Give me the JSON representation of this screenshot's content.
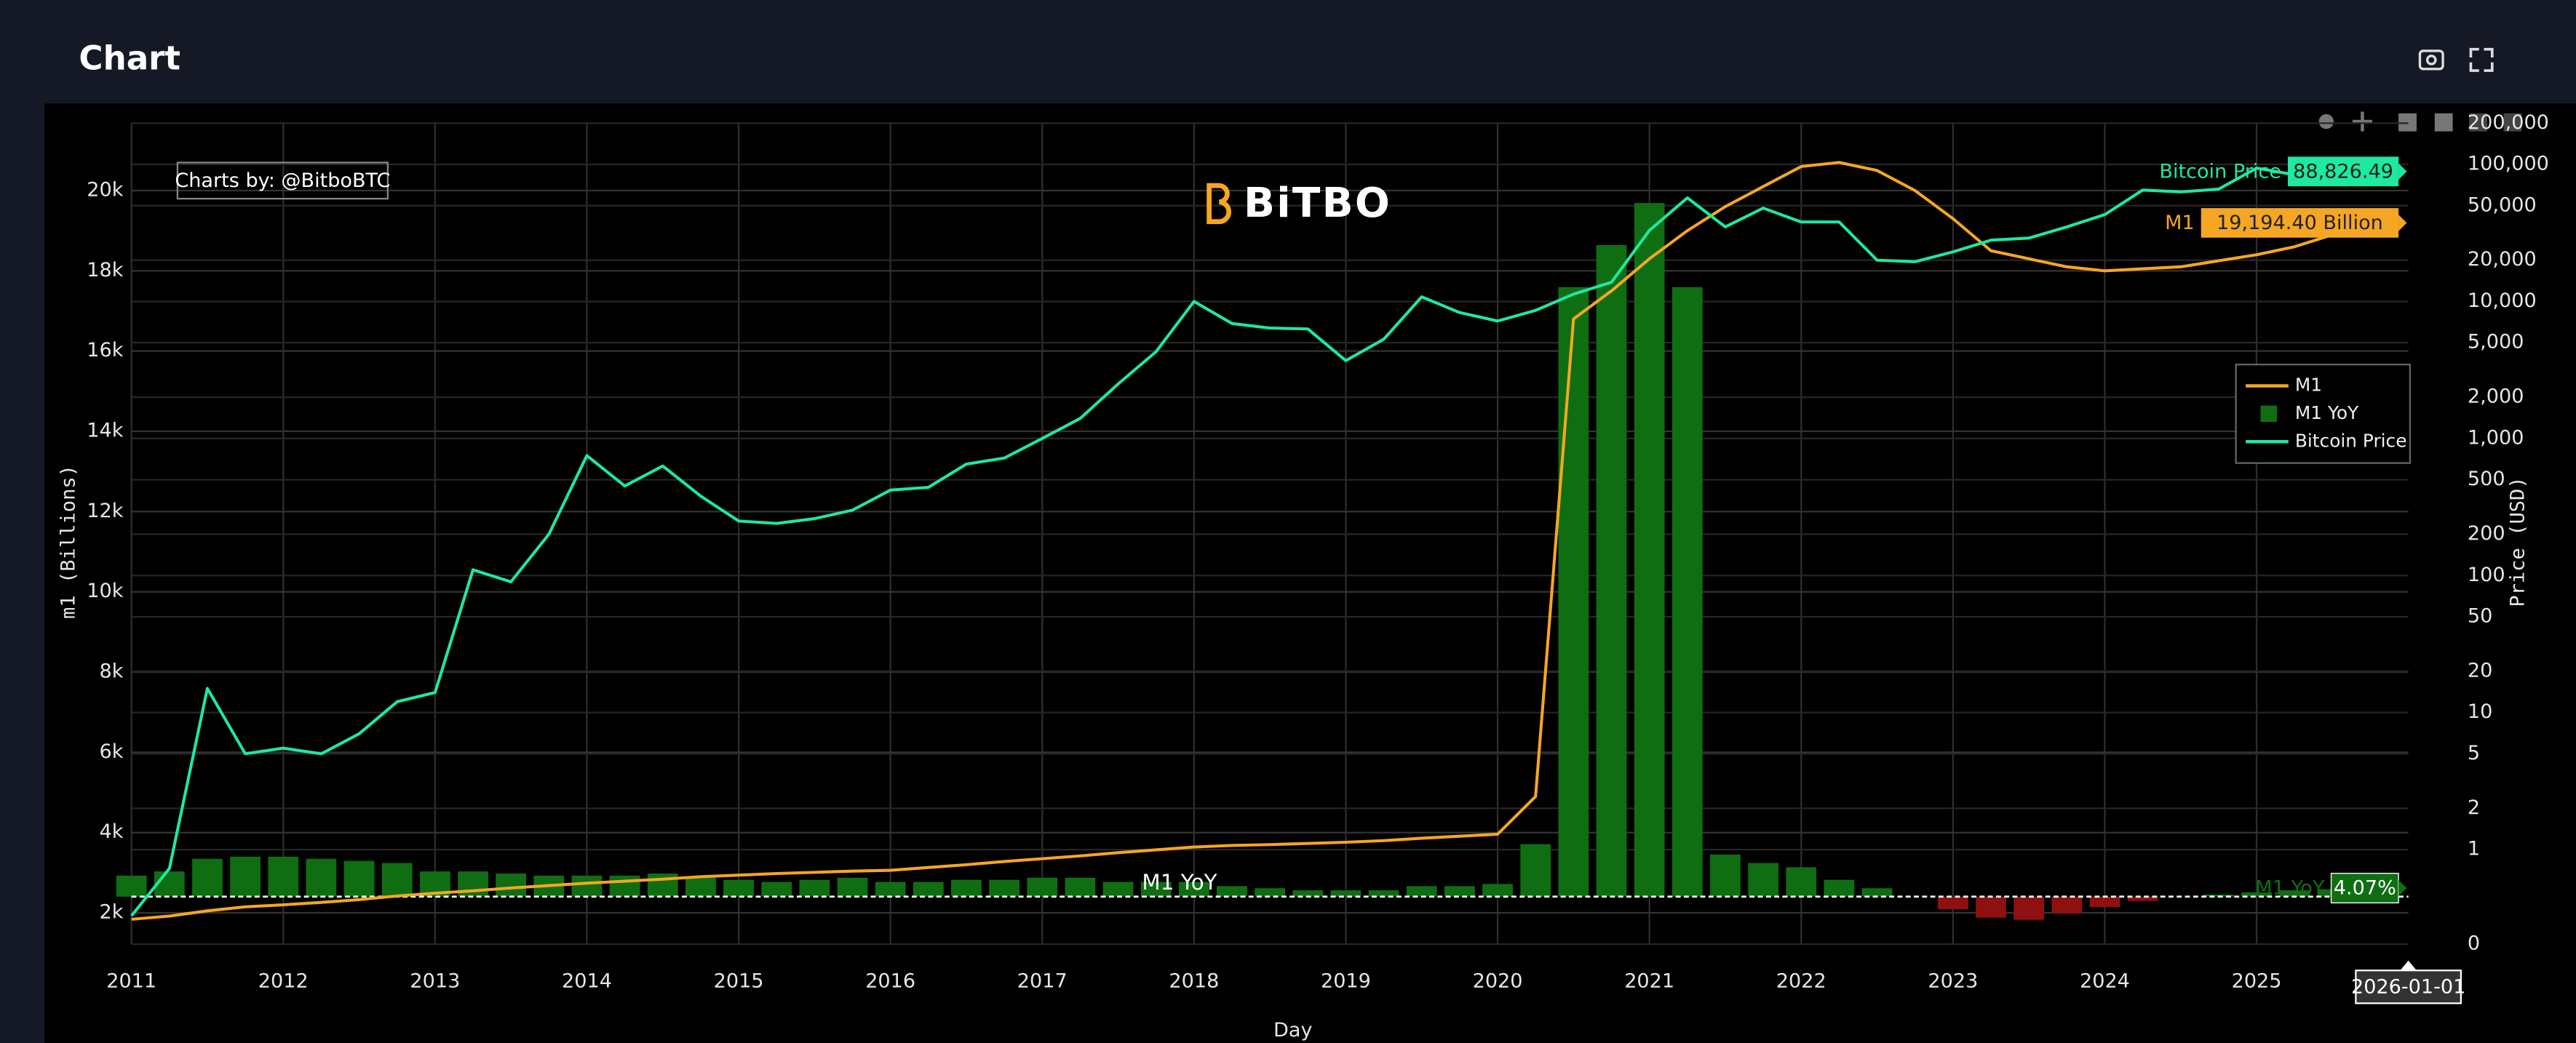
{
  "header": {
    "title": "Chart"
  },
  "chart_data": {
    "type": "line",
    "watermark": "Charts by: @BitboBTC",
    "logo_text": "BiTBO",
    "baseline_label": "M1 YoY",
    "cursor_label": "2026-01-01",
    "xlabel": "Day",
    "ylabel": "m1 (Billions)",
    "y2label": "Price (USD)",
    "grid": true,
    "legend": "right",
    "xlim": [
      2011,
      2026
    ],
    "xticks": [
      2011,
      2012,
      2013,
      2014,
      2015,
      2016,
      2017,
      2018,
      2019,
      2020,
      2021,
      2022,
      2023,
      2024,
      2025
    ],
    "ylim": [
      1220,
      21680
    ],
    "yticks": [
      {
        "value": 2000,
        "label": "2k"
      },
      {
        "value": 4000,
        "label": "4k"
      },
      {
        "value": 6000,
        "label": "6k"
      },
      {
        "value": 8000,
        "label": "8k"
      },
      {
        "value": 10000,
        "label": "10k"
      },
      {
        "value": 12000,
        "label": "12k"
      },
      {
        "value": 14000,
        "label": "14k"
      },
      {
        "value": 16000,
        "label": "16k"
      },
      {
        "value": 18000,
        "label": "18k"
      },
      {
        "value": 20000,
        "label": "20k"
      }
    ],
    "y2scale": "symlog",
    "y2lim": [
      0,
      200000
    ],
    "y2ticks": [
      0,
      1,
      2,
      5,
      10,
      20,
      50,
      100,
      200,
      500,
      {
        "value": 1000,
        "label": "1,000"
      },
      {
        "value": 2000,
        "label": "2,000"
      },
      {
        "value": 5000,
        "label": "5,000"
      },
      {
        "value": 10000,
        "label": "10,000"
      },
      {
        "value": 20000,
        "label": "20,000"
      },
      {
        "value": 50000,
        "label": "50,000"
      },
      {
        "value": 100000,
        "label": "100,000"
      },
      {
        "value": 200000,
        "label": "200,000"
      }
    ],
    "y3lim": [
      -22.6,
      368
    ],
    "x": [
      2011,
      2011.25,
      2011.5,
      2011.75,
      2012,
      2012.25,
      2012.5,
      2012.75,
      2013,
      2013.25,
      2013.5,
      2013.75,
      2014,
      2014.25,
      2014.5,
      2014.75,
      2015,
      2015.25,
      2015.5,
      2015.75,
      2016,
      2016.25,
      2016.5,
      2016.75,
      2017,
      2017.25,
      2017.5,
      2017.75,
      2018,
      2018.25,
      2018.5,
      2018.75,
      2019,
      2019.25,
      2019.5,
      2019.75,
      2020,
      2020.25,
      2020.5,
      2020.75,
      2021,
      2021.25,
      2021.5,
      2021.75,
      2022,
      2022.25,
      2022.5,
      2022.75,
      2023,
      2023.25,
      2023.5,
      2023.75,
      2024,
      2024.25,
      2024.5,
      2024.75,
      2025,
      2025.25,
      2025.5,
      2025.75
    ],
    "series": [
      {
        "name": "M1",
        "type": "line",
        "axis": "y",
        "color": "#f5a623",
        "values": [
          1840,
          1920,
          2050,
          2150,
          2200,
          2260,
          2330,
          2420,
          2490,
          2550,
          2620,
          2680,
          2740,
          2790,
          2840,
          2900,
          2940,
          2980,
          3010,
          3040,
          3060,
          3130,
          3200,
          3280,
          3350,
          3420,
          3500,
          3570,
          3640,
          3680,
          3700,
          3730,
          3760,
          3800,
          3860,
          3910,
          3960,
          4900,
          16800,
          17500,
          18300,
          19000,
          19600,
          20100,
          20600,
          20700,
          20500,
          20000,
          19300,
          18500,
          18300,
          18100,
          18000,
          18050,
          18100,
          18250,
          18400,
          18600,
          18900,
          19194.4
        ],
        "end_label": "19,194.40 Billion"
      },
      {
        "name": "M1 YoY",
        "type": "bar",
        "axis": "y3",
        "color": "#0f6e12",
        "negative_color": "#8e1010",
        "values": [
          10,
          12,
          18,
          19,
          19,
          18,
          17,
          16,
          12,
          12,
          11,
          10,
          10,
          10,
          11,
          9,
          8,
          7,
          8,
          9,
          7,
          7,
          8,
          8,
          9,
          9,
          7,
          7,
          7,
          5,
          4,
          3,
          3,
          3,
          5,
          5,
          6,
          25,
          290,
          310,
          330,
          290,
          20,
          16,
          14,
          8,
          4,
          0,
          -6,
          -10,
          -11,
          -8,
          -5,
          -2,
          0,
          1,
          2,
          3,
          3.5,
          4.07
        ],
        "end_label": "4.07%"
      },
      {
        "name": "Bitcoin Price",
        "type": "line",
        "axis": "y2",
        "color": "#1de9a0",
        "values": [
          0.3,
          0.8,
          15,
          5,
          5.5,
          5,
          7,
          12,
          14,
          110,
          90,
          200,
          750,
          450,
          630,
          380,
          250,
          240,
          260,
          300,
          420,
          440,
          650,
          720,
          1000,
          1400,
          2500,
          4300,
          10000,
          6900,
          6400,
          6300,
          3700,
          5300,
          10800,
          8300,
          7200,
          8600,
          11300,
          13800,
          33000,
          57000,
          35000,
          48000,
          38000,
          38000,
          20000,
          19500,
          23000,
          28000,
          29000,
          35000,
          43000,
          65000,
          63000,
          66000,
          94000,
          84000,
          107000,
          88826.49
        ],
        "end_label": "88,826.49"
      }
    ]
  }
}
